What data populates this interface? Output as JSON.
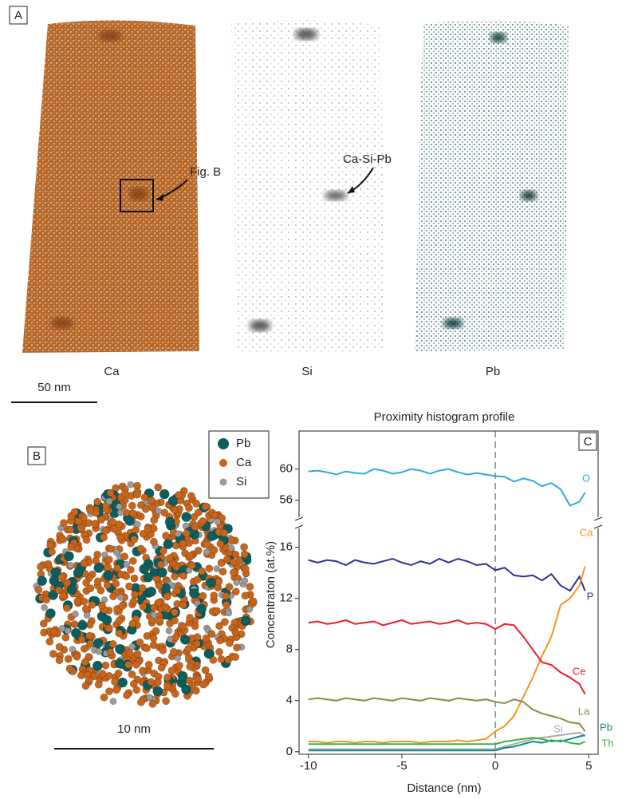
{
  "panel_a": {
    "label": "A",
    "images": [
      "Ca",
      "Si",
      "Pb"
    ],
    "scale_bar": "50 nm",
    "annotations": [
      "Fig. B",
      "Ca-Si-Pb"
    ]
  },
  "panel_b": {
    "label": "B",
    "legend": [
      "Pb",
      "Ca",
      "Si"
    ],
    "scale_bar": "10 nm"
  },
  "chart_data": {
    "type": "line",
    "panel_label": "C",
    "title": "Proximity histogram profile",
    "x_label": "Distance (nm)",
    "y_label": "Concentraton (at.%)",
    "x": [
      -10,
      -9.5,
      -9,
      -8.5,
      -8,
      -7.5,
      -7,
      -6.5,
      -6,
      -5.5,
      -5,
      -4.5,
      -4,
      -3.5,
      -3,
      -2.5,
      -2,
      -1.5,
      -1,
      -0.5,
      0,
      0.5,
      1,
      1.5,
      2,
      2.5,
      3,
      3.5,
      4,
      4.5,
      4.8
    ],
    "xlim": [
      -10.5,
      5.5
    ],
    "xticks": [
      -10,
      -5,
      0,
      5
    ],
    "ylim": [
      -0.2,
      17.6
    ],
    "yticks": [
      0,
      4,
      8,
      12,
      16
    ],
    "ylim_top": [
      53.6,
      64.9
    ],
    "yticks_top": [
      56,
      60
    ],
    "reference_x": 0,
    "series": [
      {
        "name": "O",
        "color": "#29abe2",
        "axis": "top",
        "values": [
          59.7,
          59.8,
          59.6,
          59.3,
          59.7,
          59.5,
          59.4,
          60.0,
          59.8,
          59.4,
          59.6,
          60.0,
          59.8,
          59.4,
          59.8,
          60.0,
          59.6,
          59.3,
          59.5,
          59.3,
          59.1,
          59.0,
          58.4,
          58.8,
          58.5,
          57.8,
          58.2,
          57.4,
          55.3,
          55.8,
          57.0
        ]
      },
      {
        "name": "P",
        "color": "#2e3192",
        "values": [
          15.0,
          14.8,
          15.0,
          14.9,
          14.6,
          15.0,
          14.8,
          14.7,
          14.9,
          15.1,
          14.8,
          14.6,
          14.9,
          14.7,
          15.1,
          14.8,
          15.1,
          14.9,
          14.6,
          14.7,
          14.2,
          14.4,
          13.8,
          13.7,
          13.8,
          13.4,
          13.9,
          13.0,
          12.6,
          13.7,
          12.6
        ]
      },
      {
        "name": "Ca",
        "color": "#f7931e",
        "values": [
          0.8,
          0.8,
          0.7,
          0.8,
          0.8,
          0.7,
          0.8,
          0.8,
          0.7,
          0.8,
          0.8,
          0.8,
          0.7,
          0.8,
          0.8,
          0.8,
          0.9,
          0.8,
          0.9,
          1.0,
          1.6,
          2.0,
          2.8,
          4.3,
          5.8,
          7.5,
          9.0,
          11.5,
          12.0,
          13.0,
          14.5
        ]
      },
      {
        "name": "Ce",
        "color": "#ed1c24",
        "values": [
          10.1,
          10.2,
          10.0,
          10.1,
          10.3,
          10.0,
          10.1,
          10.2,
          9.9,
          10.1,
          10.3,
          10.0,
          10.1,
          10.2,
          10.0,
          10.1,
          10.3,
          10.0,
          10.1,
          10.0,
          9.6,
          10.0,
          9.9,
          9.0,
          8.0,
          7.0,
          6.8,
          6.2,
          5.8,
          5.3,
          4.5
        ]
      },
      {
        "name": "La",
        "color": "#8d8a45",
        "values": [
          4.1,
          4.2,
          4.1,
          4.0,
          4.2,
          4.1,
          4.0,
          4.2,
          4.1,
          4.0,
          4.2,
          4.1,
          4.0,
          4.2,
          4.1,
          4.0,
          4.2,
          4.1,
          4.0,
          4.1,
          3.9,
          3.8,
          4.1,
          3.9,
          3.3,
          3.0,
          2.8,
          2.6,
          2.3,
          2.2,
          1.6
        ]
      },
      {
        "name": "Si",
        "color": "#aaaaaa",
        "values": [
          0.2,
          0.2,
          0.2,
          0.2,
          0.2,
          0.2,
          0.2,
          0.2,
          0.2,
          0.2,
          0.2,
          0.2,
          0.2,
          0.2,
          0.2,
          0.2,
          0.2,
          0.2,
          0.2,
          0.2,
          0.2,
          0.4,
          0.6,
          0.8,
          1.0,
          1.1,
          1.2,
          1.3,
          1.4,
          1.5,
          1.2
        ]
      },
      {
        "name": "Pb",
        "color": "#0f8c8c",
        "values": [
          0.1,
          0.1,
          0.1,
          0.1,
          0.1,
          0.1,
          0.1,
          0.1,
          0.1,
          0.1,
          0.1,
          0.1,
          0.1,
          0.1,
          0.1,
          0.1,
          0.1,
          0.1,
          0.1,
          0.1,
          0.1,
          0.3,
          0.4,
          0.6,
          0.8,
          0.7,
          0.9,
          0.8,
          1.0,
          1.2,
          1.3
        ]
      },
      {
        "name": "Th",
        "color": "#39b54a",
        "values": [
          0.6,
          0.6,
          0.6,
          0.6,
          0.6,
          0.6,
          0.6,
          0.6,
          0.6,
          0.6,
          0.6,
          0.6,
          0.6,
          0.6,
          0.6,
          0.6,
          0.6,
          0.6,
          0.6,
          0.6,
          0.6,
          0.8,
          0.9,
          1.0,
          1.1,
          1.0,
          0.8,
          0.9,
          0.7,
          0.6,
          0.8
        ]
      }
    ]
  }
}
